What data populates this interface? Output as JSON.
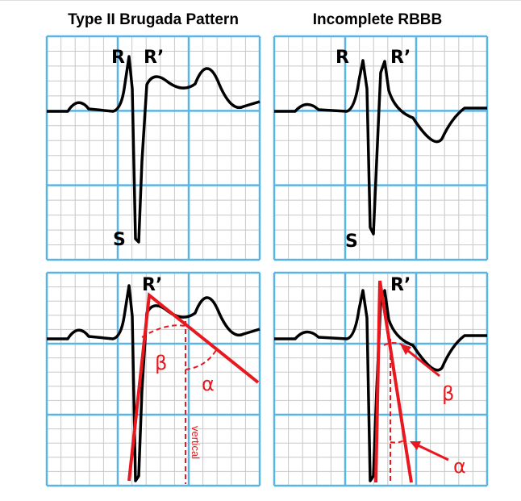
{
  "panels": {
    "brugada": {
      "title": "Type II Brugada Pattern",
      "r": "R",
      "r_prime": "R’",
      "s": "S"
    },
    "rbbb": {
      "title": "Incomplete RBBB",
      "r": "R",
      "r_prime": "R’",
      "s": "S"
    },
    "brugada_angles": {
      "r_prime": "R’",
      "beta": "β",
      "alpha": "α",
      "vertical": "vertical"
    },
    "rbbb_angles": {
      "r_prime": "R’",
      "beta": "β",
      "alpha": "α"
    }
  }
}
